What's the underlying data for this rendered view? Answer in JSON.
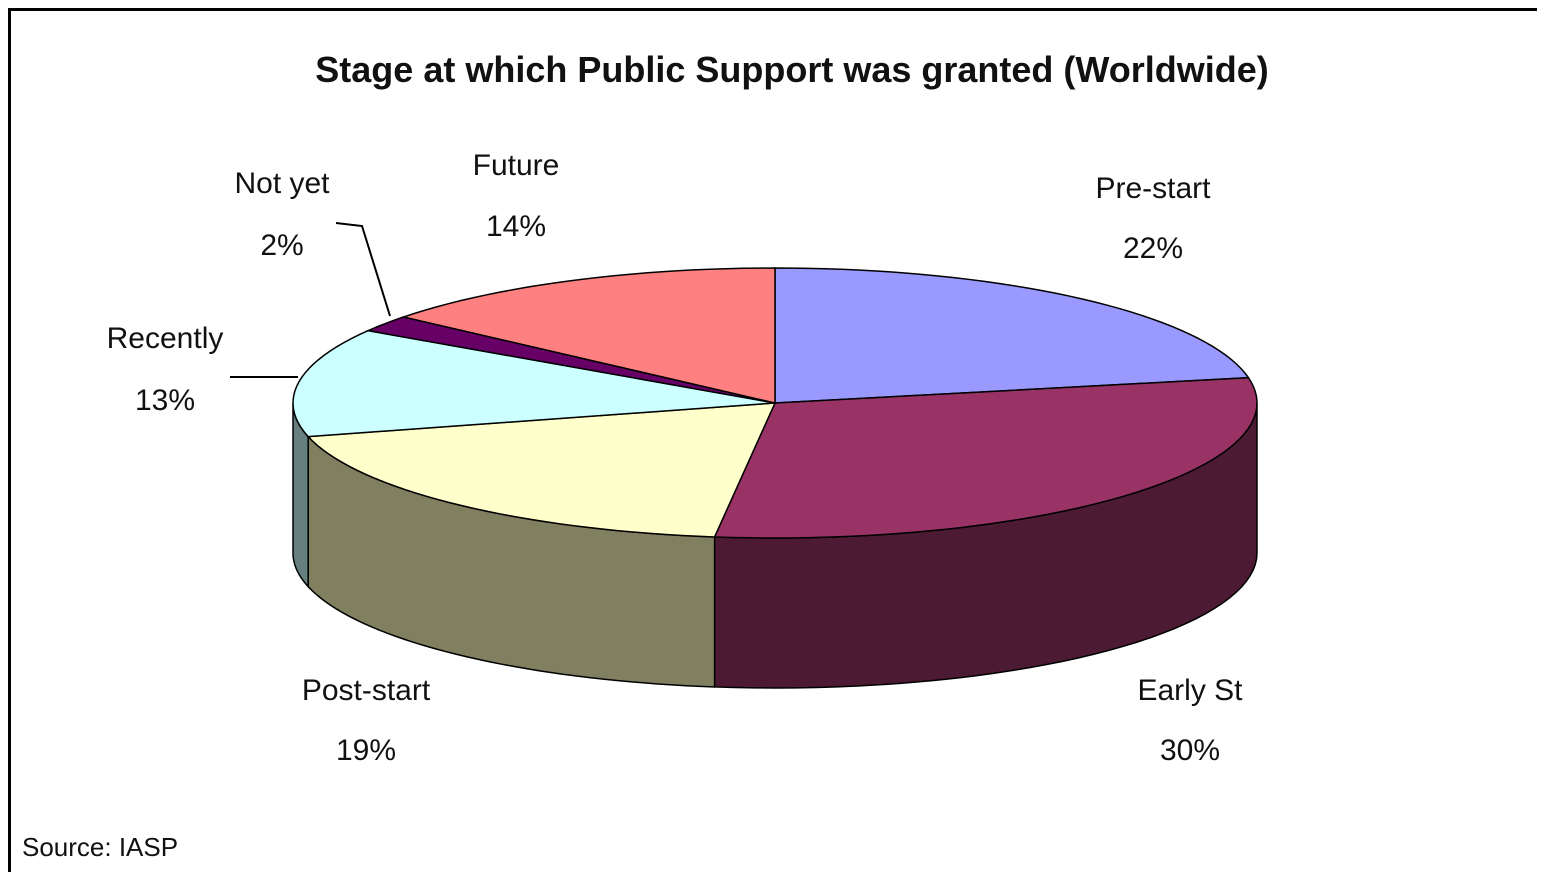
{
  "chart_data": {
    "type": "pie",
    "title": "Stage at which Public Support was granted (Worldwide)",
    "source": "Source: IASP",
    "slices": [
      {
        "label": "Pre-start",
        "value": 22,
        "value_label": "22%",
        "color": "#9999FF",
        "side_color": "#6f6fbf"
      },
      {
        "label": "Early St",
        "value": 30,
        "value_label": "30%",
        "color": "#993366",
        "side_color": "#4d1a33"
      },
      {
        "label": "Post-start",
        "value": 19,
        "value_label": "19%",
        "color": "#FFFFCC",
        "side_color": "#808060"
      },
      {
        "label": "Recently",
        "value": 13,
        "value_label": "13%",
        "color": "#CCFFFF",
        "side_color": "#668080"
      },
      {
        "label": "Not yet",
        "value": 2,
        "value_label": "2%",
        "color": "#660066",
        "side_color": "#330033"
      },
      {
        "label": "Future",
        "value": 14,
        "value_label": "14%",
        "color": "#FF8080",
        "side_color": "#804040"
      }
    ]
  }
}
